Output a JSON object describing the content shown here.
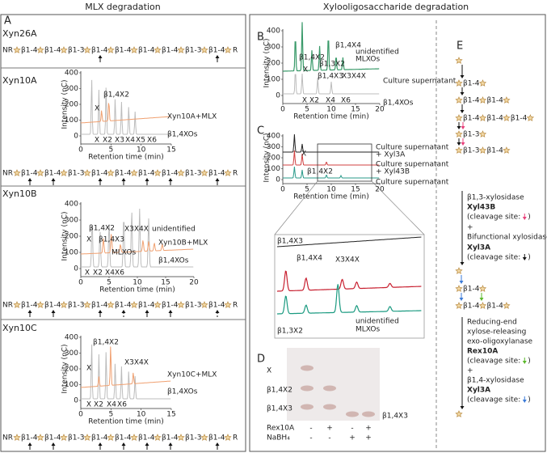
{
  "headers": {
    "left": "MLX degradation",
    "right": "Xylooligosaccharide degradation"
  },
  "panel_a": {
    "label": "A",
    "sections": [
      {
        "name": "Xyn26A",
        "sequence": [
          "NR",
          "β1-4",
          "β1-4",
          "β1-3",
          "β1-4",
          "β1-4",
          "β1-4",
          "β1-4",
          "β1-3",
          "β1-4",
          "R"
        ]
      },
      {
        "name": "Xyn10A",
        "chart": {
          "y_label": "Intensity (nC)",
          "x_label": "Retention time (min)",
          "y_ticks": [
            0,
            100,
            200,
            300,
            400
          ],
          "x_ticks": [
            0,
            5,
            10,
            15
          ],
          "annotations": [
            "X",
            "β1,4X2",
            "Xyn10A+MLX",
            "β1,4XOs"
          ],
          "xo_labels": [
            "X",
            "X2",
            "X3",
            "X4",
            "X5",
            "X6"
          ]
        },
        "sequence": [
          "NR",
          "β1-4",
          "β1-4",
          "β1-3",
          "β1-4",
          "β1-4",
          "β1-4",
          "β1-4",
          "β1-3",
          "β1-4",
          "R"
        ]
      },
      {
        "name": "Xyn10B",
        "chart": {
          "y_label": "Intensity (nC)",
          "x_label": "Retention time (min)",
          "y_ticks": [
            0,
            100,
            200,
            300,
            400
          ],
          "x_ticks": [
            0,
            5,
            10,
            15,
            20
          ],
          "annotations": [
            "β1,4X2",
            "X",
            "β1,4X3",
            "X3X4X",
            "unidentified",
            "Xyn10B+MLX",
            "MLXOs",
            "β1,4XOs"
          ],
          "xo_labels": [
            "X",
            "X2",
            "X4",
            "X6"
          ]
        },
        "sequence": [
          "NR",
          "β1-4",
          "β1-4",
          "β1-3",
          "β1-4",
          "β1-4",
          "β1-4",
          "β1-4",
          "β1-3",
          "β1-4",
          "R"
        ]
      },
      {
        "name": "Xyn10C",
        "chart": {
          "y_label": "Intensity (nC)",
          "x_label": "Retention time (min)",
          "y_ticks": [
            0,
            100,
            200,
            300,
            400
          ],
          "x_ticks": [
            0,
            5,
            10,
            15
          ],
          "annotations": [
            "β1,4X2",
            "X",
            "X3X4X",
            "Xyn10C+MLX",
            "β1,4XOs"
          ],
          "xo_labels": [
            "X",
            "X2",
            "X4",
            "X6"
          ]
        },
        "sequence": [
          "NR",
          "β1-4",
          "β1-4",
          "β1-3",
          "β1-4",
          "β1-4",
          "β1-4",
          "β1-4",
          "β1-3",
          "β1-4",
          "R"
        ]
      }
    ]
  },
  "panel_b": {
    "label": "B",
    "chart": {
      "y_label": "Intensity (nC)",
      "x_label": "Retention time (min)",
      "y_ticks": [
        0,
        100,
        200,
        300,
        400
      ],
      "x_ticks": [
        0,
        5,
        10,
        15,
        20
      ],
      "annotations": [
        "β1,4X2",
        "X",
        "β1,3X2",
        "β1,4X4",
        "β1,4X3",
        "X3X4X",
        "unidentified",
        "MLXOs",
        "Culture supernatant",
        "β1,4XOs"
      ],
      "xo_labels": [
        "X",
        "X2",
        "X4",
        "X6"
      ]
    }
  },
  "panel_c": {
    "label": "C",
    "chart": {
      "y_label": "Intensity (nC)",
      "x_label": "Retention time (min)",
      "y_ticks": [
        0,
        100,
        200,
        300,
        400
      ],
      "x_ticks": [
        0,
        5,
        10,
        15,
        20
      ],
      "annotations": [
        "X",
        "β1,4X2",
        "Culture supernatant",
        "+ Xyl3A",
        "Culture supernatant",
        "+ Xyl43B",
        "Culture supernatant"
      ]
    },
    "zoom": {
      "annotations": [
        "β1,4X3",
        "β1,4X4",
        "X3X4X",
        "β1,3X2",
        "unidentified",
        "MLXOs"
      ]
    }
  },
  "panel_d": {
    "label": "D",
    "spots": [
      "X",
      "β1,4X2",
      "β1,4X3"
    ],
    "product": "β1,4X3",
    "rows": [
      {
        "name": "Rex10A",
        "signs": [
          "-",
          "+",
          "-",
          "+"
        ]
      },
      {
        "name": "NaBH₄",
        "signs": [
          "-",
          "-",
          "+",
          "+"
        ]
      }
    ]
  },
  "panel_e": {
    "label": "E",
    "upper_chains": [
      [
        "β1-4"
      ],
      [
        "β1-4",
        "β1-4"
      ],
      [
        "β1-4",
        "β1-4",
        "β1-4"
      ],
      [
        "β1-3"
      ],
      [
        "β1-3",
        "β1-4"
      ]
    ],
    "upper_text": [
      {
        "text": "β1,3-xylosidase"
      },
      {
        "text": "Xyl43B",
        "bold": true
      },
      {
        "text": "(cleavage site:",
        "close": ")",
        "arrow_color": "#e8407a"
      },
      {
        "text": "+"
      },
      {
        "text": "Bifunctional xylosidase"
      },
      {
        "text": "Xyl3A",
        "bold": true
      },
      {
        "text": "(cleavage site:",
        "close": ")",
        "arrow_color": "#111111"
      }
    ],
    "lower_chains": [
      [
        "β1-4"
      ],
      [
        "β1-4",
        "β1-4"
      ]
    ],
    "lower_text": [
      {
        "text": "Reducing-end"
      },
      {
        "text": "xylose-releasing"
      },
      {
        "text": "exo-oligoxylanase"
      },
      {
        "text": "Rex10A",
        "bold": true
      },
      {
        "text": "(cleavage site:",
        "close": ")",
        "arrow_color": "#5ab82a"
      },
      {
        "text": "+"
      },
      {
        "text": "β1,4-xylosidase"
      },
      {
        "text": "Xyl3A",
        "bold": true
      },
      {
        "text": "(cleavage site:",
        "close": ")",
        "arrow_color": "#3a7ad8"
      }
    ]
  }
}
